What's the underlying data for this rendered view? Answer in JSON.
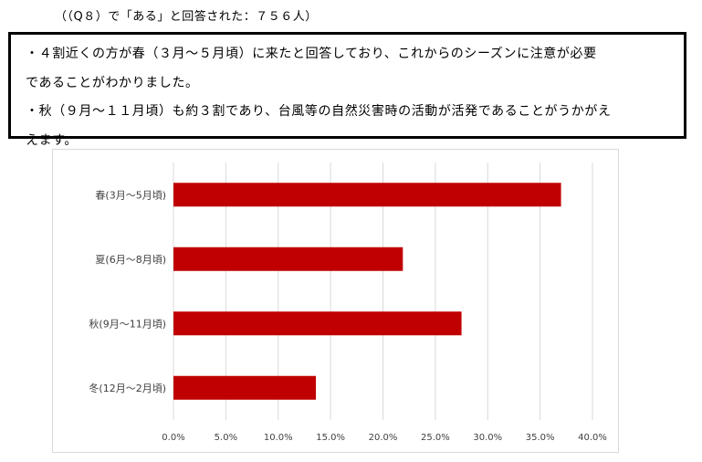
{
  "header": {
    "note": "（（Q８）で「ある」と回答された：７５６人）"
  },
  "summary": {
    "lines": [
      "・４割近くの方が春（３月～５月頃）に来たと回答しており、これからのシーズンに注意が必要",
      "であることがわかりました。",
      "・秋（９月～１１月頃）も約３割であり、台風等の自然災害時の活動が活発であることがうかがえ",
      "えます。"
    ]
  },
  "chart_data": {
    "type": "bar",
    "orientation": "horizontal",
    "categories": [
      "春(3月～5月頃)",
      "夏(6月～8月頃)",
      "秋(9月～11月頃)",
      "冬(12月～2月頃)"
    ],
    "values": [
      37.0,
      21.9,
      27.5,
      13.6
    ],
    "unit": "%",
    "xlim": [
      0,
      40
    ],
    "ticks": [
      "0.0%",
      "5.0%",
      "10.0%",
      "15.0%",
      "20.0%",
      "25.0%",
      "30.0%",
      "35.0%",
      "40.0%"
    ],
    "tick_values": [
      0,
      5,
      10,
      15,
      20,
      25,
      30,
      35,
      40
    ],
    "grid": true,
    "bar_color": "#c00000",
    "grid_color": "#d9d9d9"
  }
}
